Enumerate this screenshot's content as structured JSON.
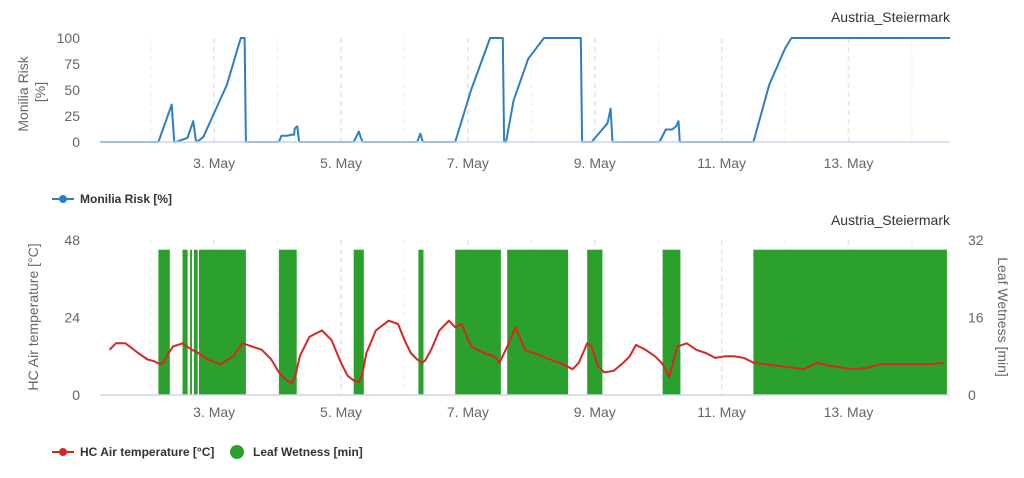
{
  "charts": [
    {
      "title": "Austria_Steiermark",
      "y_axis_label_lines": [
        "Monilia Risk",
        "[%]"
      ],
      "legend": [
        {
          "label": "Monilia Risk [%]",
          "color": "#2f7ec1",
          "symbol": "line-dot"
        }
      ]
    },
    {
      "title": "Austria_Steiermark",
      "y_axis_left_label": "HC Air temperature [°C]",
      "y_axis_right_label": "Leaf Wetness [min]",
      "legend": [
        {
          "label": "HC Air temperature [°C]",
          "color": "#d62728",
          "symbol": "line-dot"
        },
        {
          "label": "Leaf Wetness [min]",
          "color": "#2ca02c",
          "symbol": "dot"
        }
      ]
    }
  ],
  "chart_data": [
    {
      "type": "line",
      "title": "Austria_Steiermark",
      "xlabel": "",
      "ylabel": "Monilia Risk [%]",
      "xlim": [
        1.2,
        14.6
      ],
      "ylim": [
        0,
        100
      ],
      "y_ticks": [
        0,
        25,
        50,
        75,
        100
      ],
      "x_ticks": [
        3,
        5,
        7,
        9,
        11,
        13
      ],
      "x_tick_labels": [
        "3. May",
        "5. May",
        "7. May",
        "9. May",
        "11. May",
        "13. May"
      ],
      "grid": "vertical dashed",
      "legend_position": "bottom-left",
      "series": [
        {
          "name": "Monilia Risk [%]",
          "color": "#2f7ec1",
          "x": [
            1.2,
            2.12,
            2.33,
            2.37,
            2.4,
            2.58,
            2.67,
            2.71,
            2.73,
            2.83,
            3.0,
            3.2,
            3.38,
            3.42,
            3.48,
            3.5,
            4.02,
            4.06,
            4.15,
            4.22,
            4.26,
            4.27,
            4.31,
            4.33,
            4.34,
            5.2,
            5.28,
            5.32,
            5.34,
            6.2,
            6.25,
            6.29,
            6.8,
            7.05,
            7.35,
            7.55,
            7.57,
            7.6,
            7.72,
            7.95,
            8.2,
            8.72,
            8.78,
            8.8,
            8.82,
            8.95,
            9.2,
            9.25,
            9.28,
            10.02,
            10.12,
            10.22,
            10.28,
            10.32,
            10.34,
            10.36,
            11.5,
            11.75,
            12.0,
            12.1,
            14.6
          ],
          "y": [
            0,
            0,
            36,
            0,
            0,
            4,
            20,
            2,
            0,
            5,
            28,
            55,
            92,
            100,
            100,
            0,
            0,
            6,
            6,
            7,
            7,
            13,
            15,
            5,
            0,
            0,
            10,
            3,
            0,
            0,
            8,
            0,
            0,
            50,
            100,
            100,
            0,
            0,
            40,
            80,
            100,
            100,
            100,
            0,
            0,
            0,
            18,
            32,
            0,
            0,
            12,
            12,
            15,
            20,
            0,
            0,
            0,
            55,
            90,
            100,
            100
          ]
        }
      ]
    },
    {
      "type": "line",
      "title": "Austria_Steiermark",
      "xlabel": "",
      "ylabel": "HC Air temperature [°C]",
      "y2label": "Leaf Wetness [min]",
      "xlim": [
        1.2,
        14.6
      ],
      "ylim": [
        0,
        48
      ],
      "y2lim": [
        0,
        32
      ],
      "y_ticks": [
        0,
        24,
        48
      ],
      "y2_ticks": [
        0,
        16,
        32
      ],
      "x_ticks": [
        3,
        5,
        7,
        9,
        11,
        13
      ],
      "x_tick_labels": [
        "3. May",
        "5. May",
        "7. May",
        "9. May",
        "11. May",
        "13. May"
      ],
      "grid": "vertical dashed",
      "legend_position": "bottom-left",
      "series": [
        {
          "name": "HC Air temperature [°C]",
          "type": "line",
          "axis": "left",
          "color": "#d62728",
          "x": [
            1.35,
            1.45,
            1.6,
            1.8,
            1.95,
            2.05,
            2.15,
            2.2,
            2.25,
            2.35,
            2.5,
            2.65,
            2.75,
            2.9,
            3.1,
            3.3,
            3.45,
            3.6,
            3.75,
            3.9,
            4.02,
            4.12,
            4.22,
            4.28,
            4.35,
            4.5,
            4.7,
            4.85,
            5.0,
            5.1,
            5.2,
            5.28,
            5.33,
            5.4,
            5.55,
            5.75,
            5.9,
            6.0,
            6.1,
            6.2,
            6.27,
            6.32,
            6.42,
            6.55,
            6.7,
            6.8,
            6.9,
            7.05,
            7.25,
            7.42,
            7.5,
            7.62,
            7.75,
            7.9,
            8.1,
            8.3,
            8.5,
            8.65,
            8.75,
            8.88,
            8.95,
            9.05,
            9.15,
            9.3,
            9.45,
            9.55,
            9.65,
            9.8,
            9.95,
            10.05,
            10.12,
            10.17,
            10.22,
            10.3,
            10.45,
            10.6,
            10.75,
            10.9,
            11.05,
            11.2,
            11.35,
            11.5,
            11.7,
            11.9,
            12.1,
            12.3,
            12.5,
            12.7,
            12.9,
            13.1,
            13.3,
            13.5,
            13.7,
            13.9,
            14.1,
            14.3,
            14.5
          ],
          "y": [
            14,
            16,
            16,
            13,
            11,
            10.5,
            9.5,
            10,
            12,
            15,
            16,
            14,
            13,
            11,
            9.5,
            12,
            16,
            15,
            14,
            11,
            7,
            5,
            3.5,
            6,
            12,
            18,
            20,
            17,
            10,
            6,
            4.5,
            4,
            6,
            13,
            20,
            23,
            22,
            17,
            13,
            11,
            10,
            10.5,
            14,
            20,
            23,
            21,
            22,
            15,
            13,
            12,
            10,
            15,
            21,
            14,
            12.5,
            11,
            9.5,
            8,
            10,
            16,
            15,
            9,
            7,
            7.5,
            10,
            12,
            15.5,
            14,
            12,
            10,
            8,
            5.5,
            9,
            15,
            16,
            14,
            13,
            11.5,
            12,
            12,
            11.5,
            10,
            9.5,
            9,
            8.5,
            8,
            10,
            9,
            8.5,
            8,
            8.5,
            9.5,
            9.5,
            9.5,
            9.5,
            9.5,
            10
          ]
        },
        {
          "name": "Leaf Wetness [min]",
          "type": "column",
          "axis": "right",
          "color": "#2ca02c",
          "periods": [
            {
              "start": 2.12,
              "end": 2.3,
              "value": 30
            },
            {
              "start": 2.5,
              "end": 2.58,
              "value": 30
            },
            {
              "start": 2.62,
              "end": 2.65,
              "value": 30
            },
            {
              "start": 2.68,
              "end": 2.74,
              "value": 30
            },
            {
              "start": 2.76,
              "end": 3.5,
              "value": 30
            },
            {
              "start": 4.02,
              "end": 4.3,
              "value": 30
            },
            {
              "start": 5.2,
              "end": 5.36,
              "value": 30
            },
            {
              "start": 6.22,
              "end": 6.3,
              "value": 30
            },
            {
              "start": 6.8,
              "end": 7.52,
              "value": 30
            },
            {
              "start": 7.62,
              "end": 8.58,
              "value": 30
            },
            {
              "start": 8.88,
              "end": 9.12,
              "value": 30
            },
            {
              "start": 10.07,
              "end": 10.35,
              "value": 30
            },
            {
              "start": 11.5,
              "end": 14.55,
              "value": 30
            }
          ]
        }
      ]
    }
  ]
}
